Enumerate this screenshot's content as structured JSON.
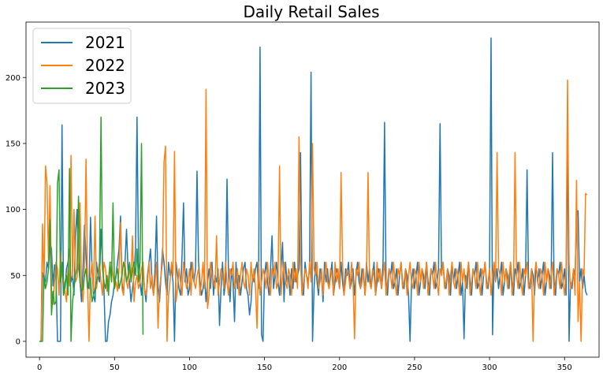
{
  "chart_data": {
    "type": "line",
    "title": "Daily Retail Sales",
    "xlabel": "",
    "ylabel": "",
    "xlim": [
      -9,
      373
    ],
    "ylim": [
      -12,
      242
    ],
    "xticks": [
      0,
      50,
      100,
      150,
      200,
      250,
      300,
      350
    ],
    "yticks": [
      0,
      50,
      100,
      150,
      200
    ],
    "grid": false,
    "legend_position": "top-left",
    "series": [
      {
        "name": "2021",
        "color": "#1f77b4",
        "values": [
          0,
          0,
          52,
          48,
          45,
          60,
          55,
          75,
          70,
          42,
          58,
          50,
          0,
          0,
          0,
          164,
          35,
          40,
          55,
          60,
          70,
          45,
          50,
          35,
          80,
          100,
          60,
          45,
          30,
          55,
          88,
          65,
          45,
          40,
          94,
          55,
          35,
          30,
          60,
          50,
          45,
          85,
          60,
          38,
          0,
          0,
          15,
          20,
          30,
          35,
          45,
          50,
          60,
          70,
          95,
          45,
          35,
          60,
          85,
          55,
          45,
          30,
          40,
          50,
          70,
          170,
          60,
          45,
          35,
          55,
          40,
          30,
          50,
          60,
          70,
          45,
          35,
          55,
          95,
          40,
          30,
          50,
          70,
          60,
          45,
          35,
          60,
          50,
          55,
          45,
          0,
          60,
          50,
          40,
          35,
          65,
          105,
          45,
          55,
          35,
          40,
          60,
          50,
          45,
          55,
          129,
          60,
          45,
          35,
          40,
          50,
          30,
          45,
          55,
          40,
          60,
          35,
          50,
          45,
          55,
          12,
          40,
          60,
          35,
          45,
          123,
          50,
          30,
          55,
          45,
          15,
          60,
          40,
          50,
          35,
          45,
          55,
          60,
          40,
          35,
          20,
          30,
          50,
          45,
          55,
          60,
          40,
          223,
          5,
          0,
          50,
          60,
          45,
          35,
          55,
          80,
          40,
          50,
          60,
          45,
          35,
          55,
          75,
          30,
          60,
          45,
          50,
          35,
          55,
          40,
          60,
          45,
          50,
          55,
          143,
          40,
          35,
          60,
          50,
          45,
          55,
          204,
          0,
          40,
          60,
          45,
          35,
          55,
          50,
          30,
          60,
          45,
          55,
          40,
          50,
          60,
          35,
          45,
          55,
          50,
          40,
          60,
          45,
          35,
          55,
          50,
          60,
          40,
          45,
          55,
          35,
          50,
          60,
          45,
          40,
          55,
          50,
          35,
          60,
          45,
          55,
          40,
          50,
          60,
          35,
          45,
          55,
          50,
          40,
          60,
          166,
          45,
          35,
          55,
          50,
          60,
          40,
          45,
          55,
          35,
          50,
          60,
          45,
          40,
          55,
          50,
          35,
          0,
          45,
          55,
          40,
          50,
          60,
          35,
          45,
          55,
          50,
          40,
          60,
          45,
          35,
          55,
          50,
          60,
          40,
          45,
          55,
          165,
          50,
          60,
          45,
          40,
          55,
          50,
          35,
          60,
          45,
          55,
          40,
          50,
          60,
          35,
          45,
          2,
          50,
          40,
          60,
          45,
          35,
          55,
          50,
          60,
          40,
          45,
          55,
          35,
          50,
          60,
          45,
          40,
          55,
          230,
          5,
          60,
          45,
          55,
          40,
          50,
          60,
          35,
          45,
          55,
          50,
          40,
          60,
          45,
          35,
          55,
          50,
          60,
          40,
          45,
          55,
          35,
          50,
          130,
          45,
          40,
          55,
          50,
          35,
          60,
          45,
          55,
          40,
          50,
          60,
          35,
          45,
          55,
          50,
          40,
          143,
          45,
          35,
          55,
          50,
          60,
          40,
          45,
          55,
          35,
          158,
          0,
          45,
          40,
          55,
          50,
          95,
          99,
          45,
          55,
          40,
          50,
          38,
          35
        ]
      },
      {
        "name": "2022",
        "color": "#ff7f0e",
        "values": [
          0,
          0,
          89,
          40,
          133,
          120,
          60,
          118,
          38,
          28,
          45,
          60,
          55,
          35,
          68,
          50,
          45,
          38,
          30,
          55,
          42,
          141,
          48,
          100,
          45,
          48,
          60,
          105,
          44,
          30,
          55,
          138,
          45,
          0,
          50,
          60,
          38,
          95,
          40,
          50,
          60,
          45,
          35,
          60,
          55,
          38,
          48,
          60,
          60,
          50,
          40,
          45,
          38,
          55,
          90,
          40,
          35,
          60,
          45,
          40,
          55,
          50,
          80,
          30,
          45,
          50,
          40,
          45,
          55,
          60,
          40,
          35,
          45,
          60,
          40,
          50,
          35,
          45,
          60,
          10,
          40,
          50,
          60,
          136,
          148,
          0,
          35,
          45,
          60,
          50,
          144,
          30,
          40,
          55,
          45,
          35,
          60,
          50,
          40,
          45,
          55,
          35,
          60,
          45,
          40,
          50,
          55,
          35,
          45,
          60,
          40,
          191,
          25,
          35,
          60,
          50,
          45,
          40,
          80,
          35,
          45,
          55,
          50,
          40,
          60,
          45,
          35,
          55,
          50,
          60,
          40,
          45,
          55,
          35,
          50,
          60,
          45,
          40,
          55,
          50,
          35,
          60,
          45,
          55,
          40,
          10,
          60,
          35,
          45,
          55,
          50,
          40,
          60,
          45,
          35,
          55,
          50,
          60,
          40,
          45,
          133,
          35,
          50,
          60,
          45,
          40,
          55,
          50,
          35,
          60,
          45,
          55,
          40,
          155,
          60,
          35,
          45,
          55,
          50,
          40,
          60,
          45,
          150,
          55,
          50,
          60,
          40,
          45,
          55,
          35,
          50,
          60,
          45,
          40,
          55,
          50,
          35,
          60,
          45,
          55,
          40,
          128,
          60,
          35,
          45,
          55,
          50,
          40,
          60,
          45,
          2,
          55,
          50,
          60,
          40,
          45,
          55,
          35,
          50,
          128,
          45,
          40,
          55,
          50,
          35,
          60,
          45,
          55,
          40,
          50,
          60,
          35,
          45,
          55,
          50,
          40,
          60,
          45,
          35,
          55,
          50,
          60,
          40,
          45,
          55,
          35,
          50,
          60,
          45,
          40,
          55,
          50,
          35,
          60,
          45,
          55,
          40,
          50,
          60,
          35,
          45,
          55,
          50,
          40,
          60,
          45,
          35,
          55,
          50,
          60,
          40,
          45,
          55,
          35,
          50,
          60,
          45,
          40,
          55,
          50,
          35,
          60,
          45,
          55,
          40,
          50,
          60,
          35,
          45,
          55,
          50,
          40,
          60,
          45,
          35,
          55,
          50,
          60,
          40,
          45,
          55,
          35,
          50,
          60,
          45,
          143,
          55,
          50,
          35,
          60,
          45,
          55,
          40,
          50,
          60,
          35,
          45,
          143,
          50,
          40,
          60,
          45,
          35,
          55,
          50,
          60,
          40,
          45,
          55,
          0,
          50,
          60,
          45,
          40,
          55,
          50,
          35,
          60,
          45,
          55,
          40,
          50,
          60,
          35,
          45,
          55,
          50,
          40,
          60,
          45,
          35,
          55,
          198,
          60,
          40,
          45,
          55,
          35,
          122,
          15,
          45,
          0,
          55,
          50,
          112,
          111
        ]
      },
      {
        "name": "2023",
        "color": "#2ca02c",
        "values": [
          0,
          0,
          0,
          50,
          40,
          45,
          55,
          92,
          20,
          38,
          28,
          30,
          120,
          130,
          45,
          60,
          35,
          45,
          50,
          35,
          131,
          0,
          30,
          40,
          50,
          55,
          110,
          45,
          38,
          40,
          50,
          55,
          40,
          45,
          48,
          30,
          35,
          40,
          45,
          50,
          60,
          170,
          55,
          45,
          40,
          50,
          35,
          60,
          45,
          105,
          40,
          50,
          55,
          40,
          45,
          50,
          60,
          55,
          45,
          50,
          60,
          45,
          55,
          60,
          50,
          70,
          45,
          60,
          150,
          5
        ]
      }
    ]
  }
}
